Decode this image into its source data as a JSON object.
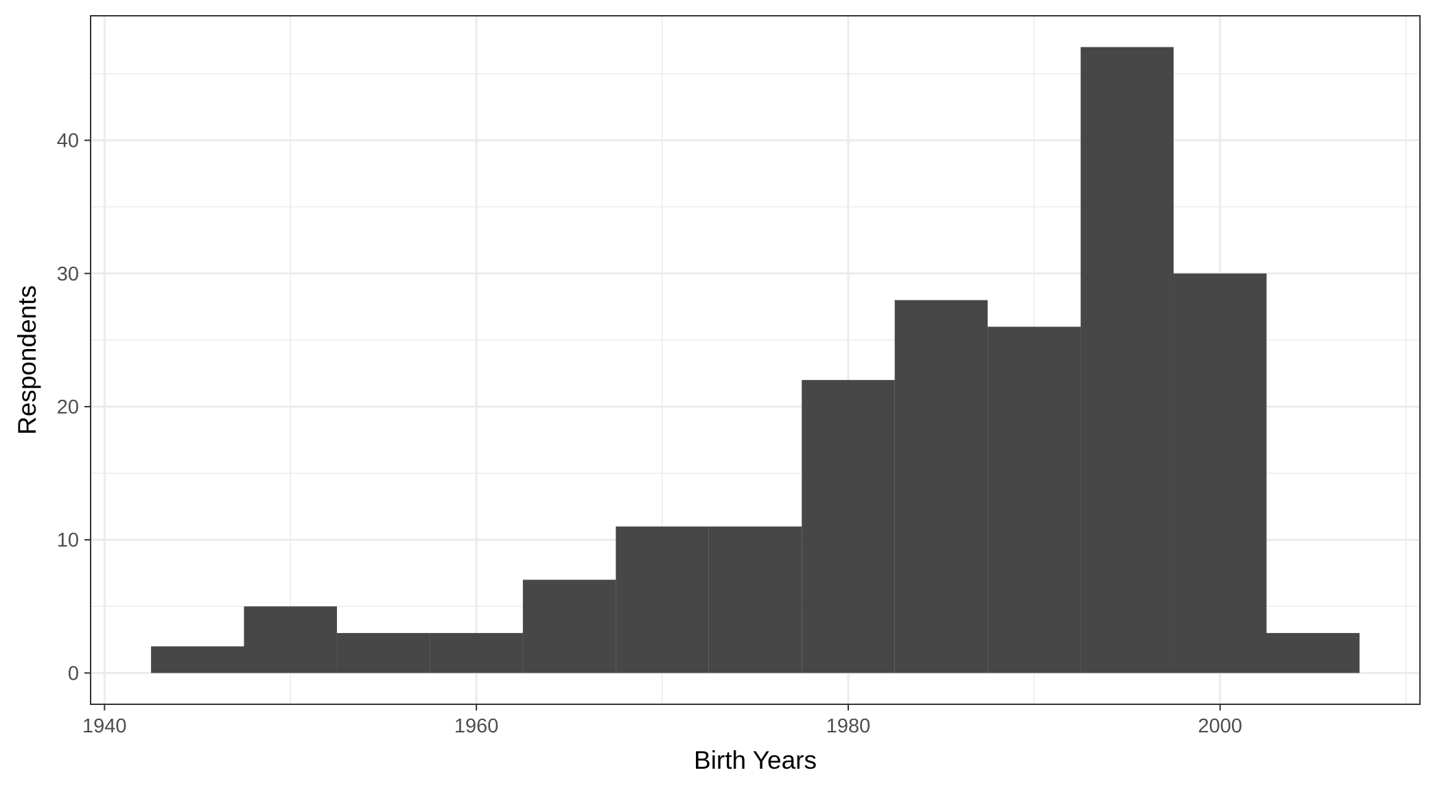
{
  "chart_data": {
    "type": "bar",
    "subtype": "histogram",
    "title": "",
    "xlabel": "Birth Years",
    "ylabel": "Respondents",
    "bin_width": 5,
    "bins": [
      {
        "x_start": 1942.5,
        "x_end": 1947.5,
        "count": 2
      },
      {
        "x_start": 1947.5,
        "x_end": 1952.5,
        "count": 5
      },
      {
        "x_start": 1952.5,
        "x_end": 1957.5,
        "count": 3
      },
      {
        "x_start": 1957.5,
        "x_end": 1962.5,
        "count": 3
      },
      {
        "x_start": 1962.5,
        "x_end": 1967.5,
        "count": 7
      },
      {
        "x_start": 1967.5,
        "x_end": 1972.5,
        "count": 11
      },
      {
        "x_start": 1972.5,
        "x_end": 1977.5,
        "count": 11
      },
      {
        "x_start": 1977.5,
        "x_end": 1982.5,
        "count": 22
      },
      {
        "x_start": 1982.5,
        "x_end": 1987.5,
        "count": 28
      },
      {
        "x_start": 1987.5,
        "x_end": 1992.5,
        "count": 26
      },
      {
        "x_start": 1992.5,
        "x_end": 1997.5,
        "count": 47
      },
      {
        "x_start": 1997.5,
        "x_end": 2002.5,
        "count": 30
      },
      {
        "x_start": 2002.5,
        "x_end": 2007.5,
        "count": 3
      }
    ],
    "xlim": [
      1939.25,
      2010.75
    ],
    "ylim": [
      -2.35,
      49.35
    ],
    "x_ticks": [
      1940,
      1960,
      1980,
      2000
    ],
    "x_tick_labels": [
      "1940",
      "1960",
      "1980",
      "2000"
    ],
    "x_minor_ticks": [
      1950,
      1970,
      1990,
      2010
    ],
    "y_ticks": [
      0,
      10,
      20,
      30,
      40
    ],
    "y_tick_labels": [
      "0",
      "10",
      "20",
      "30",
      "40"
    ],
    "y_minor_ticks": [
      5,
      15,
      25,
      35,
      45
    ],
    "grid": true,
    "legend": "none",
    "colors": {
      "bar": "#474747",
      "grid": "#ebebeb",
      "panel_border": "#333333",
      "tick_label": "#4d4d4d",
      "background": "#ffffff"
    }
  }
}
